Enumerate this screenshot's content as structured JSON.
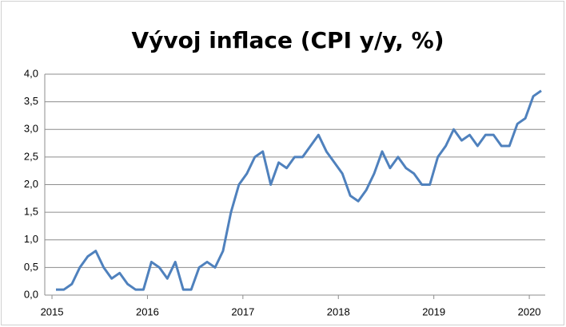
{
  "chart_data": {
    "type": "line",
    "title": "Vývoj inflace (CPI y/y, %)",
    "categories": [
      "2015",
      null,
      null,
      null,
      null,
      null,
      null,
      null,
      null,
      null,
      null,
      null,
      "2016",
      null,
      null,
      null,
      null,
      null,
      null,
      null,
      null,
      null,
      null,
      null,
      "2017",
      null,
      null,
      null,
      null,
      null,
      null,
      null,
      null,
      null,
      null,
      null,
      "2018",
      null,
      null,
      null,
      null,
      null,
      null,
      null,
      null,
      null,
      null,
      null,
      "2019",
      null,
      null,
      null,
      null,
      null,
      null,
      null,
      null,
      null,
      null,
      null,
      "2020",
      null
    ],
    "series": [
      {
        "name": "CPI y/y",
        "color": "#4f81bd",
        "values": [
          0.1,
          0.1,
          0.2,
          0.5,
          0.7,
          0.8,
          0.5,
          0.3,
          0.4,
          0.2,
          0.1,
          0.1,
          0.6,
          0.5,
          0.3,
          0.6,
          0.1,
          0.1,
          0.5,
          0.6,
          0.5,
          0.8,
          1.5,
          2.0,
          2.2,
          2.5,
          2.6,
          2.0,
          2.4,
          2.3,
          2.5,
          2.5,
          2.7,
          2.9,
          2.6,
          2.4,
          2.2,
          1.8,
          1.7,
          1.9,
          2.2,
          2.6,
          2.3,
          2.5,
          2.3,
          2.2,
          2.0,
          2.0,
          2.5,
          2.7,
          3.0,
          2.8,
          2.9,
          2.7,
          2.9,
          2.9,
          2.7,
          2.7,
          3.1,
          3.2,
          3.6,
          3.7
        ]
      }
    ],
    "ylim": [
      0,
      4
    ],
    "yticks": [
      {
        "value": 0,
        "label": "0,0"
      },
      {
        "value": 0.5,
        "label": "0,5"
      },
      {
        "value": 1,
        "label": "1,0"
      },
      {
        "value": 1.5,
        "label": "1,5"
      },
      {
        "value": 2,
        "label": "2,0"
      },
      {
        "value": 2.5,
        "label": "2,5"
      },
      {
        "value": 3,
        "label": "3,0"
      },
      {
        "value": 3.5,
        "label": "3,5"
      },
      {
        "value": 4,
        "label": "4,0"
      }
    ],
    "grid": true
  }
}
